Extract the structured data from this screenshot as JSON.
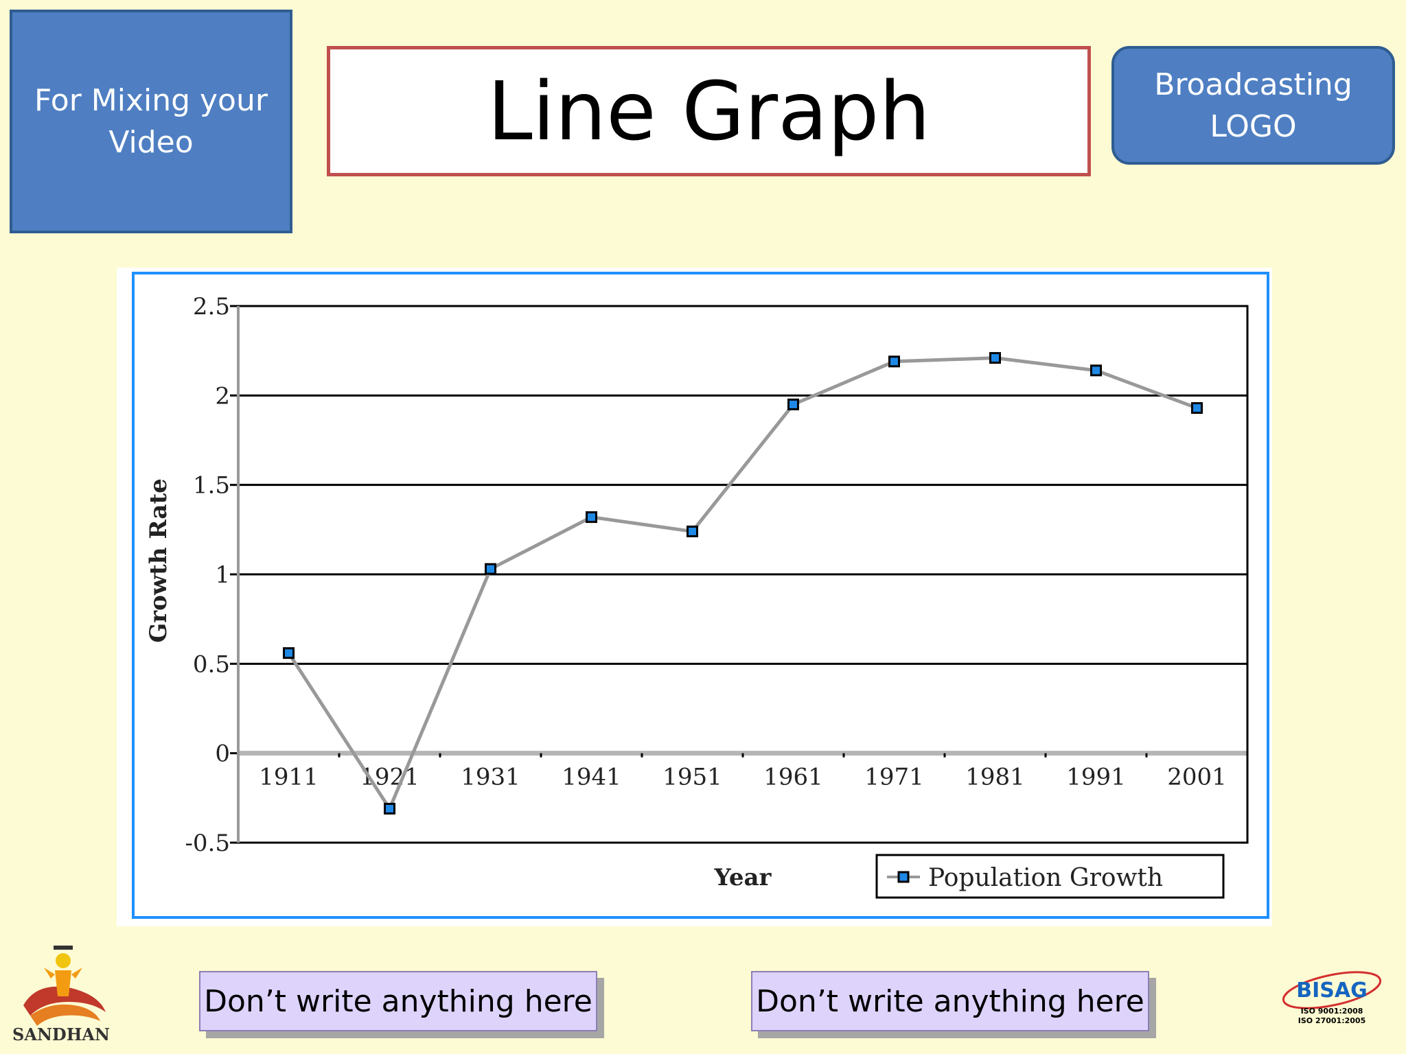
{
  "header": {
    "left_box_text": "For Mixing your Video",
    "title": "Line Graph",
    "right_box_text": "Broadcasting LOGO"
  },
  "chart_data": {
    "type": "line",
    "title": "",
    "xlabel": "Year",
    "ylabel": "Growth Rate",
    "categories": [
      "1911",
      "1921",
      "1931",
      "1941",
      "1951",
      "1961",
      "1971",
      "1981",
      "1991",
      "2001"
    ],
    "series": [
      {
        "name": "Population Growth",
        "values": [
          0.56,
          -0.31,
          1.03,
          1.32,
          1.24,
          1.95,
          2.19,
          2.21,
          2.14,
          1.93
        ]
      }
    ],
    "ylim": [
      -0.5,
      2.5
    ],
    "yticks": [
      "-0.5",
      "0",
      "0.5",
      "1",
      "1.5",
      "2",
      "2.5"
    ],
    "grid": true,
    "legend": "bottom-right",
    "colors": {
      "line": "#999999",
      "marker_fill": "#1e88e5",
      "marker_edge": "#000000",
      "frame": "#1e90ff"
    }
  },
  "footer": {
    "note_left": "Don’t write anything here",
    "note_right": "Don’t write anything here",
    "logo_left_text": "SANDHAN",
    "logo_right_text": "BISAG",
    "logo_right_iso1": "ISO  9001:2008",
    "logo_right_iso2": "ISO 27001:2005"
  }
}
